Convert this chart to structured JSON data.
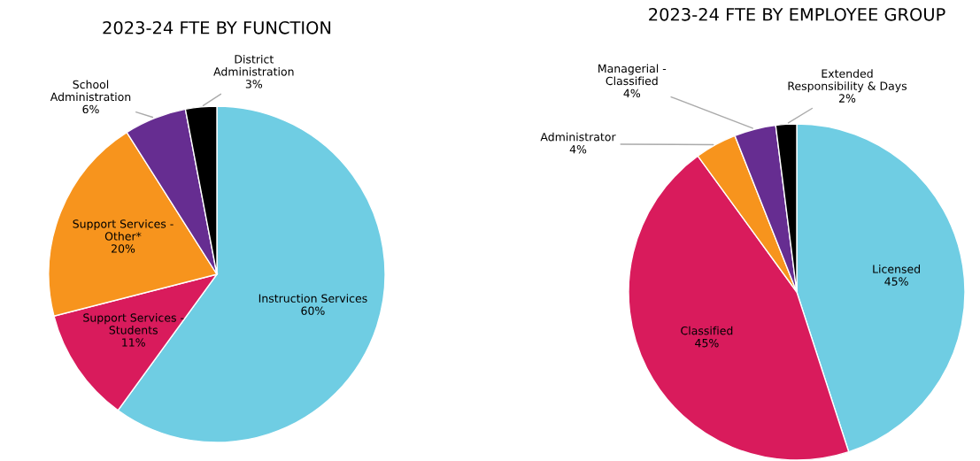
{
  "chart_data": [
    {
      "type": "pie",
      "title": "2023-24 FTE BY FUNCTION",
      "categories": [
        "Instruction Services",
        "Support Services - Students",
        "Support Services - Other*",
        "School Administration",
        "District Administration"
      ],
      "values": [
        60,
        11,
        20,
        6,
        3
      ],
      "value_labels": [
        "60%",
        "11%",
        "20%",
        "6%",
        "3%"
      ],
      "colors": [
        "#6fcde3",
        "#d91b5c",
        "#f7941d",
        "#662d91",
        "#000000"
      ]
    },
    {
      "type": "pie",
      "title": "2023-24 FTE BY EMPLOYEE GROUP",
      "categories": [
        "Licensed",
        "Classified",
        "Administrator",
        "Managerial - Classified",
        "Extended Responsibility & Days"
      ],
      "values": [
        45,
        45,
        4,
        4,
        2
      ],
      "value_labels": [
        "45%",
        "45%",
        "4%",
        "4%",
        "2%"
      ],
      "colors": [
        "#6fcde3",
        "#d91b5c",
        "#f7941d",
        "#662d91",
        "#000000"
      ]
    }
  ]
}
